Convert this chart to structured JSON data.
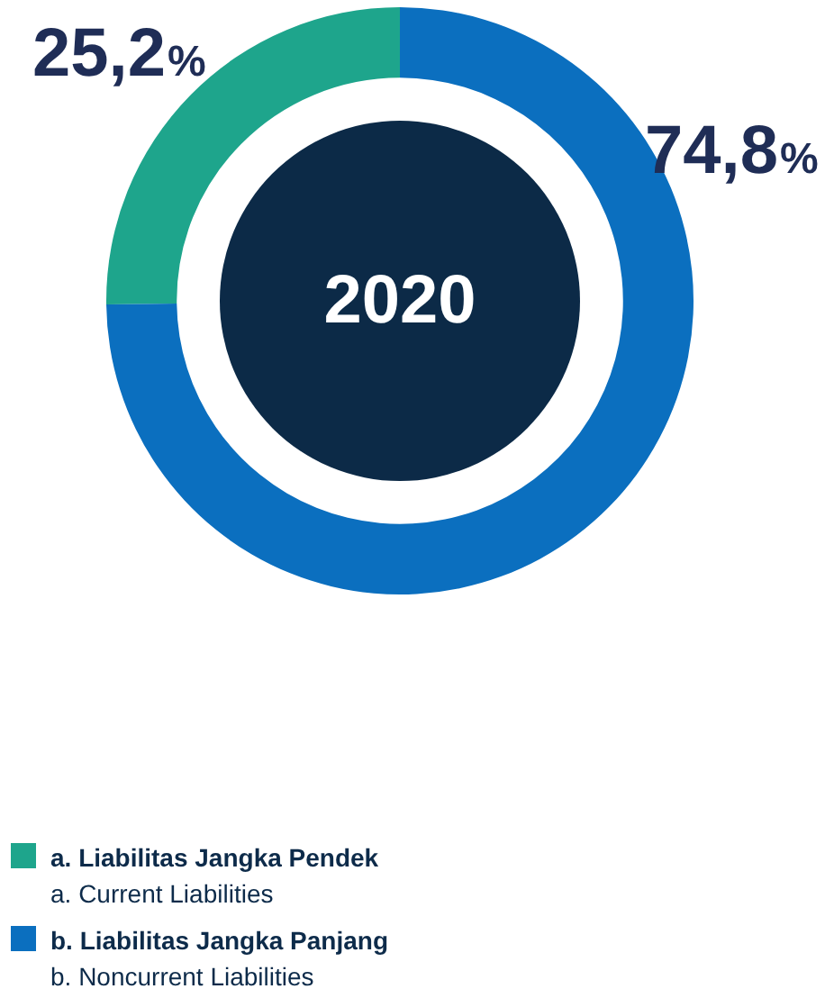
{
  "chart_data": {
    "type": "donut",
    "title": "2020",
    "categories": [
      "a. Liabilitas Jangka Pendek\na. Current Liabilities",
      "b. Liabilitas Jangka Panjang\nb. Noncurrent Liabilities"
    ],
    "values": [
      25.2,
      74.8
    ],
    "colors": [
      "#1ea58c",
      "#0b6fbf"
    ],
    "value_labels": [
      "25,2%",
      "74,8%"
    ],
    "legend": "bottom"
  }
}
